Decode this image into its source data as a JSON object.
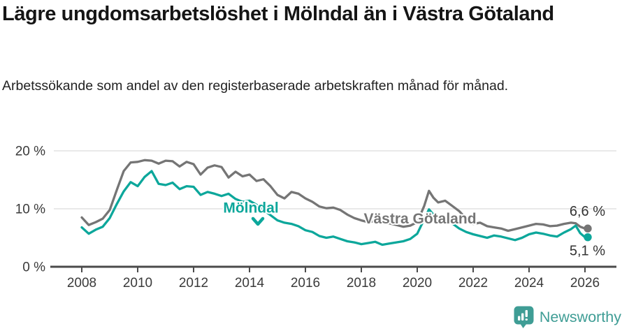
{
  "header": {
    "title": "Lägre ungdomsarbetslöshet i Mölndal än i Västra Götaland",
    "subtitle": "Arbetssökande som andel av den registerbaserade arbetskraften månad för månad."
  },
  "branding": {
    "wordmark": "Newsworthy",
    "icon": "bar-chart-speech-bubble-icon",
    "color": "#3f9d95"
  },
  "chart_data": {
    "type": "line",
    "x_unit": "decimal_year",
    "xlabel": "",
    "ylabel": "",
    "grid": "horizontal",
    "xlim": [
      2007.6,
      2026.6
    ],
    "ylim": [
      0,
      22
    ],
    "xticks": [
      2008,
      2010,
      2012,
      2014,
      2016,
      2018,
      2020,
      2022,
      2024,
      2026
    ],
    "yticks": [
      {
        "value": 0,
        "label": "0 %"
      },
      {
        "value": 10,
        "label": "10 %"
      },
      {
        "value": 20,
        "label": "20 %"
      }
    ],
    "x": [
      2008.0,
      2008.25,
      2008.5,
      2008.75,
      2009.0,
      2009.25,
      2009.5,
      2009.75,
      2010.0,
      2010.25,
      2010.5,
      2010.75,
      2011.0,
      2011.25,
      2011.5,
      2011.75,
      2012.0,
      2012.25,
      2012.5,
      2012.75,
      2013.0,
      2013.25,
      2013.5,
      2013.75,
      2014.0,
      2014.25,
      2014.5,
      2014.75,
      2015.0,
      2015.25,
      2015.5,
      2015.75,
      2016.0,
      2016.25,
      2016.5,
      2016.75,
      2017.0,
      2017.25,
      2017.5,
      2017.75,
      2018.0,
      2018.25,
      2018.5,
      2018.75,
      2019.0,
      2019.25,
      2019.5,
      2019.75,
      2020.0,
      2020.25,
      2020.42,
      2020.58,
      2020.75,
      2021.0,
      2021.25,
      2021.5,
      2021.75,
      2022.0,
      2022.25,
      2022.5,
      2022.75,
      2023.0,
      2023.25,
      2023.5,
      2023.75,
      2024.0,
      2024.25,
      2024.5,
      2024.75,
      2025.0,
      2025.25,
      2025.5,
      2025.67,
      2025.83,
      2026.0
    ],
    "series": [
      {
        "name": "Västra Götaland",
        "color": "#757575",
        "end_value": 6.6,
        "end_label": "6,6 %",
        "values": [
          8.5,
          7.2,
          7.7,
          8.3,
          9.8,
          13.2,
          16.5,
          18.0,
          18.1,
          18.4,
          18.3,
          17.8,
          18.3,
          18.2,
          17.3,
          18.1,
          17.7,
          15.9,
          17.1,
          17.5,
          17.2,
          15.4,
          16.4,
          15.6,
          15.9,
          14.8,
          15.1,
          13.9,
          12.4,
          11.8,
          12.9,
          12.6,
          11.8,
          11.2,
          10.4,
          10.1,
          10.2,
          9.8,
          9.0,
          8.4,
          8.0,
          7.7,
          7.9,
          7.7,
          7.5,
          7.2,
          6.9,
          7.1,
          7.7,
          10.5,
          13.1,
          11.9,
          11.1,
          11.4,
          10.5,
          9.6,
          8.3,
          7.4,
          7.6,
          7.0,
          6.8,
          6.6,
          6.2,
          6.5,
          6.8,
          7.1,
          7.4,
          7.3,
          7.0,
          7.1,
          7.4,
          7.6,
          7.5,
          6.9,
          6.6
        ]
      },
      {
        "name": "Mölndal",
        "color": "#0ca79b",
        "end_value": 5.1,
        "end_label": "5,1 %",
        "values": [
          6.8,
          5.7,
          6.4,
          6.9,
          8.4,
          10.8,
          13.0,
          14.6,
          13.9,
          15.5,
          16.5,
          14.3,
          14.1,
          14.5,
          13.4,
          13.9,
          13.8,
          12.4,
          12.9,
          12.6,
          12.2,
          12.6,
          11.7,
          11.2,
          11.4,
          10.7,
          9.8,
          8.9,
          8.0,
          7.6,
          7.4,
          7.0,
          6.3,
          6.0,
          5.3,
          5.0,
          5.2,
          4.8,
          4.4,
          4.2,
          3.9,
          4.1,
          4.3,
          3.8,
          4.0,
          4.2,
          4.4,
          4.8,
          5.7,
          8.2,
          9.9,
          9.0,
          8.7,
          8.2,
          7.5,
          6.6,
          6.0,
          5.6,
          5.3,
          5.0,
          5.4,
          5.2,
          4.9,
          4.6,
          5.0,
          5.6,
          5.9,
          5.7,
          5.4,
          5.2,
          5.9,
          6.5,
          7.1,
          5.8,
          5.1
        ]
      }
    ],
    "annotations": [
      {
        "text": "Mölndal",
        "color": "#0ca79b",
        "x": 2014.05,
        "y": 10.2,
        "arrow": "down"
      },
      {
        "text": "Västra Götaland",
        "color": "#757575",
        "x": 2020.1,
        "y": 8.3,
        "arrow": "none"
      }
    ]
  }
}
